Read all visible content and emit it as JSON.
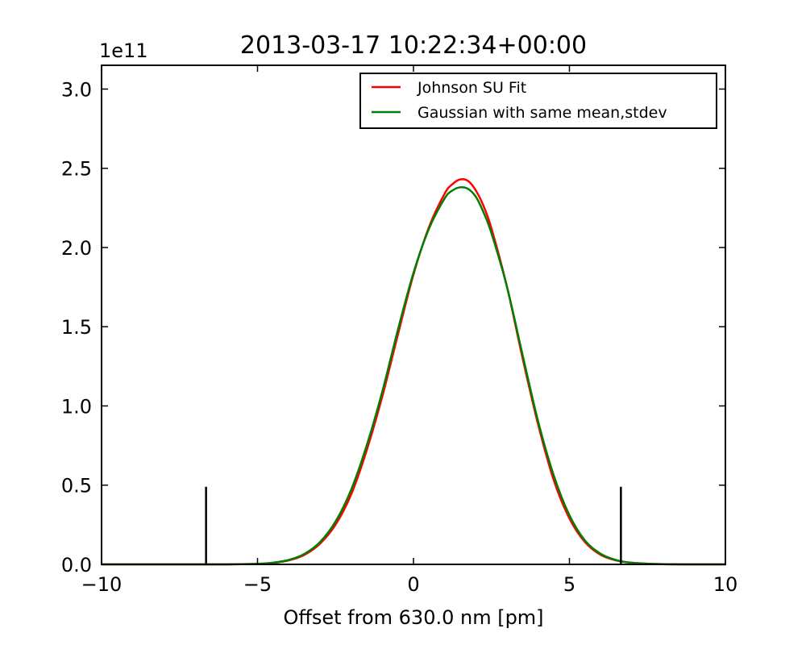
{
  "chart_data": {
    "type": "line",
    "title": "2013-03-17 10:22:34+00:00",
    "xlabel": "Offset from 630.0 nm [pm]",
    "ylabel": "",
    "y_scale_label": "1e11",
    "xlim": [
      -10,
      10
    ],
    "ylim": [
      0,
      3.15
    ],
    "x_ticks": [
      -10,
      -5,
      0,
      5,
      10
    ],
    "x_tick_labels": [
      "−10",
      "−5",
      "0",
      "5",
      "10"
    ],
    "y_ticks": [
      0,
      0.5,
      1.0,
      1.5,
      2.0,
      2.5,
      3.0
    ],
    "y_tick_labels": [
      "0.0",
      "0.5",
      "1.0",
      "1.5",
      "2.0",
      "2.5",
      "3.0"
    ],
    "grid": false,
    "legend_position": "top-right",
    "series": [
      {
        "name": "Johnson SU Fit",
        "color": "#ff0000",
        "x": [
          -10,
          -8,
          -7,
          -6,
          -5,
          -4.5,
          -4,
          -3.5,
          -3,
          -2.5,
          -2,
          -1.5,
          -1,
          -0.5,
          0,
          0.5,
          1,
          1.25,
          1.5,
          1.75,
          2,
          2.25,
          2.5,
          3,
          3.5,
          4,
          4.5,
          5,
          5.5,
          6,
          6.5,
          7,
          8,
          10
        ],
        "y": [
          0,
          0,
          0,
          0.0002,
          0.003,
          0.009,
          0.025,
          0.06,
          0.13,
          0.25,
          0.44,
          0.72,
          1.06,
          1.45,
          1.83,
          2.13,
          2.34,
          2.4,
          2.43,
          2.42,
          2.36,
          2.26,
          2.12,
          1.75,
          1.3,
          0.88,
          0.53,
          0.29,
          0.14,
          0.06,
          0.025,
          0.01,
          0.001,
          0
        ]
      },
      {
        "name": "Gaussian with same mean,stdev",
        "color": "#007f00",
        "x": [
          -10,
          -8,
          -7,
          -6,
          -5,
          -4.5,
          -4,
          -3.5,
          -3,
          -2.5,
          -2,
          -1.5,
          -1,
          -0.5,
          0,
          0.5,
          1,
          1.25,
          1.5,
          1.75,
          2,
          2.25,
          2.5,
          3,
          3.5,
          4,
          4.5,
          5,
          5.5,
          6,
          6.5,
          7,
          8,
          10
        ],
        "y": [
          0,
          0,
          0,
          0.0003,
          0.004,
          0.011,
          0.028,
          0.066,
          0.14,
          0.27,
          0.47,
          0.75,
          1.09,
          1.48,
          1.84,
          2.12,
          2.31,
          2.36,
          2.38,
          2.37,
          2.32,
          2.22,
          2.09,
          1.75,
          1.32,
          0.9,
          0.56,
          0.31,
          0.15,
          0.067,
          0.027,
          0.01,
          0.001,
          0
        ]
      }
    ],
    "vlines": [
      {
        "x": -6.65,
        "y_top": 0.49,
        "color": "#000000"
      },
      {
        "x": 6.65,
        "y_top": 0.49,
        "color": "#000000"
      }
    ]
  }
}
